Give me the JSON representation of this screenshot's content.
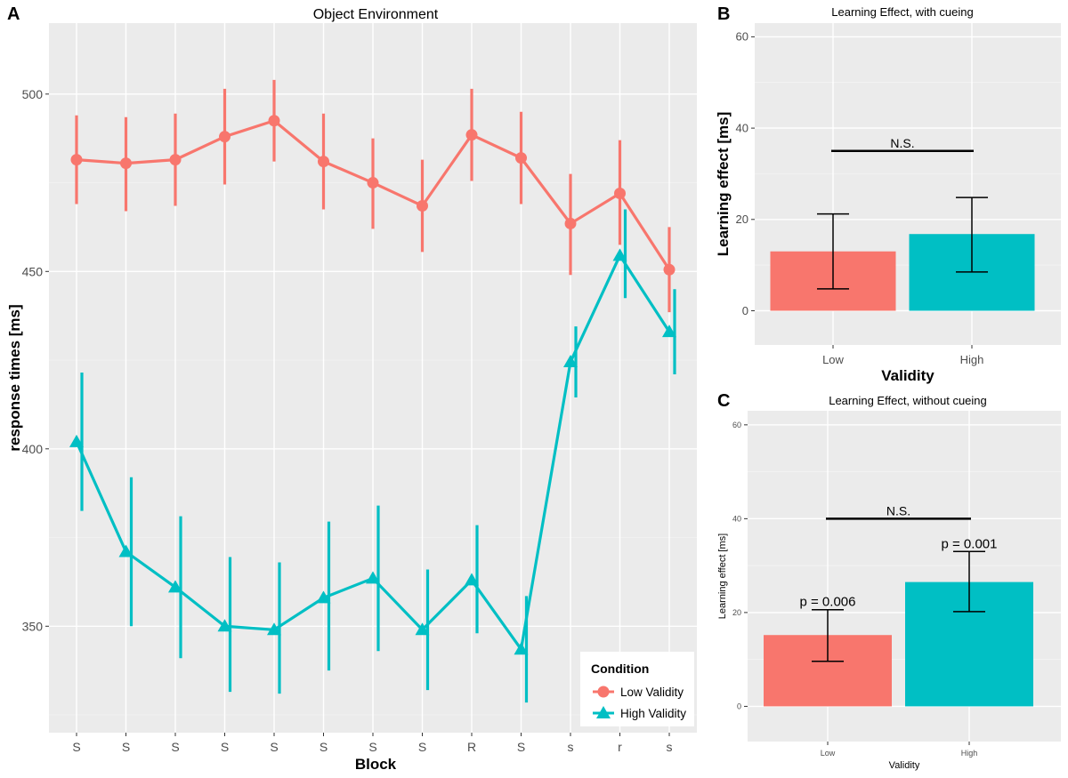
{
  "chart_data": [
    {
      "panel": "A",
      "type": "line",
      "title": "Object Environment",
      "xlabel": "Block",
      "ylabel": "response times [ms]",
      "categories": [
        "S",
        "S",
        "S",
        "S",
        "S",
        "S",
        "S",
        "S",
        "R",
        "S",
        "s",
        "r",
        "s"
      ],
      "ylim": [
        320,
        520
      ],
      "yticks": [
        350,
        400,
        450,
        500
      ],
      "series": [
        {
          "name": "Low Validity",
          "color": "#f8766d",
          "marker": "circle",
          "values": [
            481.5,
            480.5,
            481.5,
            488,
            492.5,
            481,
            475,
            468.5,
            488.5,
            482,
            463.5,
            472,
            450.5
          ],
          "lower": [
            469,
            467,
            468.5,
            474.5,
            481,
            467.5,
            462,
            455.5,
            475.5,
            469,
            449,
            457.5,
            438.5
          ],
          "upper": [
            494,
            493.5,
            494.5,
            501.5,
            504,
            494.5,
            487.5,
            481.5,
            501.5,
            495,
            477.5,
            487,
            462.5
          ]
        },
        {
          "name": "High Validity",
          "color": "#00bfc4",
          "marker": "triangle",
          "values": [
            402,
            371,
            361,
            350,
            349,
            358,
            363.5,
            349,
            363,
            343.5,
            424.5,
            454.5,
            433
          ],
          "lower": [
            382.5,
            350,
            341,
            331.5,
            331,
            337.5,
            343,
            332,
            348,
            328.5,
            414.5,
            442.5,
            421
          ],
          "upper": [
            421.5,
            392,
            381,
            369.5,
            368,
            379.5,
            384,
            366,
            378.5,
            358.5,
            434.5,
            467.5,
            445
          ]
        }
      ],
      "legend": {
        "title": "Condition",
        "position": "bottom-right",
        "items": [
          "Low Validity",
          "High Validity"
        ]
      }
    },
    {
      "panel": "B",
      "type": "bar",
      "title": "Learning Effect, with cueing",
      "xlabel": "Validity",
      "ylabel": "Learning effect [ms]",
      "categories": [
        "Low",
        "High"
      ],
      "values": [
        13,
        16.8
      ],
      "lower": [
        4.8,
        8.5
      ],
      "upper": [
        21.2,
        24.8
      ],
      "colors": [
        "#f8766d",
        "#00bfc4"
      ],
      "ylim": [
        -7.5,
        63
      ],
      "yticks": [
        0,
        20,
        40,
        60
      ],
      "annotations": [
        {
          "text": "N.S.",
          "y": 35
        }
      ]
    },
    {
      "panel": "C",
      "type": "bar",
      "title": "Learning Effect, without cueing",
      "xlabel": "Validity",
      "ylabel": "Learning effect [ms]",
      "categories": [
        "Low",
        "High"
      ],
      "values": [
        15.2,
        26.5
      ],
      "lower": [
        9.6,
        20.2
      ],
      "upper": [
        20.6,
        33
      ],
      "colors": [
        "#f8766d",
        "#00bfc4"
      ],
      "ylim": [
        -7.5,
        63
      ],
      "yticks": [
        0,
        20,
        40,
        60
      ],
      "annotations": [
        {
          "text": "N.S.",
          "y": 40
        },
        {
          "text": "p = 0.006",
          "category": "Low"
        },
        {
          "text": "p = 0.001",
          "category": "High"
        }
      ]
    }
  ]
}
